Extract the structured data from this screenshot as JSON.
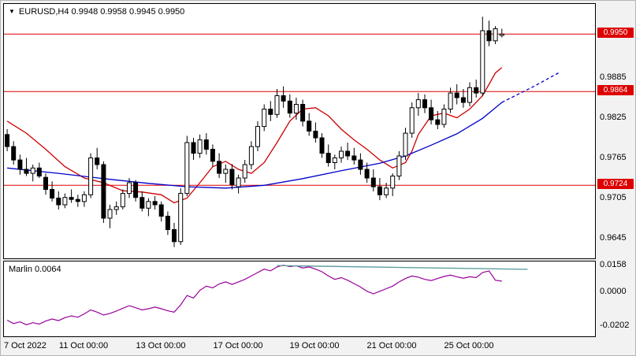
{
  "header": {
    "quote_line": "EURUSD,H4  0.9948 0.9958 0.9945 0.9950",
    "symbol": "EURUSD",
    "timeframe": "H4",
    "open": "0.9948",
    "high": "0.9958",
    "low": "0.9945",
    "close": "0.9950"
  },
  "indicator": {
    "label": "Marlin 0.0064",
    "name": "Marlin",
    "value": "0.0064"
  },
  "colors": {
    "up_candle": "#ffffff",
    "down_candle": "#000000",
    "level_line": "#dd0000",
    "badge_bg": "#dd0000",
    "ma_fast": "#cc0000",
    "ma_slow": "#0000cc",
    "indicator_line": "#990099",
    "trend_line": "#5f9ea0",
    "panel_bg": "#ffffff",
    "window_bg": "#f2f2f2"
  },
  "chart_data": [
    {
      "type": "candlestick",
      "symbol": "EURUSD",
      "timeframe": "H4",
      "ylim": [
        0.9615,
        0.9995
      ],
      "y_ticks": [
        0.9885,
        0.9825,
        0.9765,
        0.9705,
        0.9645
      ],
      "hlines": [
        0.995,
        0.9864,
        0.9724
      ],
      "total_slots": 92,
      "x_labels": [
        {
          "bar": 0,
          "label": "7 Oct 2022"
        },
        {
          "bar": 12,
          "label": "11 Oct 00:00"
        },
        {
          "bar": 24,
          "label": "13 Oct 00:00"
        },
        {
          "bar": 36,
          "label": "17 Oct 00:00"
        },
        {
          "bar": 48,
          "label": "19 Oct 00:00"
        },
        {
          "bar": 60,
          "label": "21 Oct 00:00"
        },
        {
          "bar": 72,
          "label": "25 Oct 00:00"
        }
      ],
      "candles": [
        [
          0.98,
          0.9808,
          0.9775,
          0.9782
        ],
        [
          0.9782,
          0.979,
          0.9755,
          0.9762
        ],
        [
          0.9762,
          0.977,
          0.974,
          0.9748
        ],
        [
          0.9748,
          0.9765,
          0.9738,
          0.9742
        ],
        [
          0.9742,
          0.9755,
          0.973,
          0.975
        ],
        [
          0.975,
          0.9758,
          0.9735,
          0.9738
        ],
        [
          0.9736,
          0.9742,
          0.971,
          0.9718
        ],
        [
          0.9718,
          0.973,
          0.97,
          0.9705
        ],
        [
          0.9705,
          0.9715,
          0.9688,
          0.9695
        ],
        [
          0.9695,
          0.9712,
          0.969,
          0.9706
        ],
        [
          0.9706,
          0.9718,
          0.9698,
          0.9703
        ],
        [
          0.9703,
          0.971,
          0.9692,
          0.97
        ],
        [
          0.97,
          0.9715,
          0.9692,
          0.971
        ],
        [
          0.971,
          0.9772,
          0.9705,
          0.9765
        ],
        [
          0.9765,
          0.978,
          0.9748,
          0.9755
        ],
        [
          0.9755,
          0.976,
          0.9668,
          0.9675
        ],
        [
          0.9675,
          0.9695,
          0.966,
          0.9688
        ],
        [
          0.9688,
          0.97,
          0.968,
          0.9692
        ],
        [
          0.9692,
          0.9718,
          0.9688,
          0.9712
        ],
        [
          0.9712,
          0.9735,
          0.9705,
          0.9728
        ],
        [
          0.9728,
          0.9732,
          0.97,
          0.9706
        ],
        [
          0.9706,
          0.9715,
          0.9685,
          0.969
        ],
        [
          0.969,
          0.9705,
          0.9678,
          0.97
        ],
        [
          0.97,
          0.9708,
          0.9688,
          0.9695
        ],
        [
          0.9695,
          0.97,
          0.967,
          0.9678
        ],
        [
          0.9678,
          0.9685,
          0.965,
          0.9658
        ],
        [
          0.9658,
          0.9668,
          0.9632,
          0.964
        ],
        [
          0.964,
          0.972,
          0.9635,
          0.9712
        ],
        [
          0.9712,
          0.9798,
          0.9708,
          0.9788
        ],
        [
          0.9788,
          0.9795,
          0.9762,
          0.9772
        ],
        [
          0.9772,
          0.98,
          0.9765,
          0.9792
        ],
        [
          0.9792,
          0.9802,
          0.977,
          0.9778
        ],
        [
          0.9778,
          0.9785,
          0.9752,
          0.976
        ],
        [
          0.976,
          0.9772,
          0.9735,
          0.9742
        ],
        [
          0.9742,
          0.9755,
          0.9728,
          0.9748
        ],
        [
          0.9748,
          0.9756,
          0.9718,
          0.9725
        ],
        [
          0.9722,
          0.974,
          0.9712,
          0.9735
        ],
        [
          0.9735,
          0.9762,
          0.9728,
          0.9755
        ],
        [
          0.9755,
          0.979,
          0.9748,
          0.9782
        ],
        [
          0.9782,
          0.982,
          0.9775,
          0.9812
        ],
        [
          0.9812,
          0.9845,
          0.9805,
          0.9838
        ],
        [
          0.9838,
          0.985,
          0.982,
          0.983
        ],
        [
          0.983,
          0.9868,
          0.9825,
          0.9858
        ],
        [
          0.9858,
          0.9872,
          0.984,
          0.985
        ],
        [
          0.985,
          0.986,
          0.9825,
          0.9832
        ],
        [
          0.9832,
          0.9855,
          0.9822,
          0.9845
        ],
        [
          0.9845,
          0.9852,
          0.9812,
          0.982
        ],
        [
          0.982,
          0.9832,
          0.9798,
          0.9805
        ],
        [
          0.9805,
          0.9818,
          0.9788,
          0.9795
        ],
        [
          0.9795,
          0.9802,
          0.9765,
          0.9772
        ],
        [
          0.9772,
          0.9785,
          0.9752,
          0.9758
        ],
        [
          0.9758,
          0.977,
          0.9748,
          0.9765
        ],
        [
          0.9765,
          0.9782,
          0.9758,
          0.9775
        ],
        [
          0.9775,
          0.9788,
          0.9762,
          0.9768
        ],
        [
          0.9768,
          0.978,
          0.9755,
          0.9762
        ],
        [
          0.9762,
          0.9772,
          0.974,
          0.9748
        ],
        [
          0.9748,
          0.9758,
          0.9728,
          0.9735
        ],
        [
          0.9735,
          0.9748,
          0.9715,
          0.9722
        ],
        [
          0.9722,
          0.9735,
          0.9702,
          0.971
        ],
        [
          0.971,
          0.9728,
          0.9705,
          0.972
        ],
        [
          0.972,
          0.9742,
          0.9708,
          0.9738
        ],
        [
          0.9738,
          0.9775,
          0.9732,
          0.9768
        ],
        [
          0.9768,
          0.981,
          0.9762,
          0.9802
        ],
        [
          0.9802,
          0.9848,
          0.9795,
          0.984
        ],
        [
          0.984,
          0.9862,
          0.9828,
          0.9852
        ],
        [
          0.9852,
          0.986,
          0.9832,
          0.984
        ],
        [
          0.984,
          0.9852,
          0.9815,
          0.9822
        ],
        [
          0.9822,
          0.9835,
          0.9808,
          0.9815
        ],
        [
          0.9815,
          0.9845,
          0.981,
          0.9838
        ],
        [
          0.9838,
          0.987,
          0.9832,
          0.9862
        ],
        [
          0.9862,
          0.9875,
          0.9845,
          0.9855
        ],
        [
          0.9855,
          0.9868,
          0.984,
          0.9848
        ],
        [
          0.9848,
          0.9878,
          0.9842,
          0.987
        ],
        [
          0.987,
          0.9882,
          0.9855,
          0.9862
        ],
        [
          0.9862,
          0.9976,
          0.9858,
          0.9955
        ],
        [
          0.9955,
          0.997,
          0.9932,
          0.994
        ],
        [
          0.994,
          0.9962,
          0.9935,
          0.9958
        ],
        [
          0.9948,
          0.9958,
          0.9945,
          0.995
        ]
      ],
      "ma_fast": [
        [
          0,
          0.982
        ],
        [
          3,
          0.9802
        ],
        [
          6,
          0.9778
        ],
        [
          9,
          0.9752
        ],
        [
          12,
          0.9735
        ],
        [
          15,
          0.9728
        ],
        [
          18,
          0.9716
        ],
        [
          21,
          0.9714
        ],
        [
          24,
          0.971
        ],
        [
          26,
          0.9698
        ],
        [
          28,
          0.9705
        ],
        [
          30,
          0.9728
        ],
        [
          32,
          0.9752
        ],
        [
          34,
          0.976
        ],
        [
          36,
          0.9748
        ],
        [
          38,
          0.9742
        ],
        [
          40,
          0.9758
        ],
        [
          42,
          0.9788
        ],
        [
          44,
          0.982
        ],
        [
          46,
          0.9838
        ],
        [
          48,
          0.984
        ],
        [
          50,
          0.9828
        ],
        [
          52,
          0.9808
        ],
        [
          54,
          0.9792
        ],
        [
          56,
          0.9778
        ],
        [
          58,
          0.9762
        ],
        [
          60,
          0.975
        ],
        [
          62,
          0.9758
        ],
        [
          63,
          0.9775
        ],
        [
          64,
          0.98
        ],
        [
          66,
          0.9828
        ],
        [
          68,
          0.9832
        ],
        [
          70,
          0.9825
        ],
        [
          72,
          0.9838
        ],
        [
          74,
          0.9858
        ],
        [
          75,
          0.9875
        ],
        [
          76,
          0.9892
        ],
        [
          77,
          0.99
        ]
      ],
      "ma_slow": [
        [
          0,
          0.975
        ],
        [
          8,
          0.9742
        ],
        [
          16,
          0.9733
        ],
        [
          22,
          0.9727
        ],
        [
          28,
          0.9722
        ],
        [
          34,
          0.972
        ],
        [
          40,
          0.9724
        ],
        [
          46,
          0.9734
        ],
        [
          52,
          0.9746
        ],
        [
          58,
          0.9757
        ],
        [
          62,
          0.9768
        ],
        [
          66,
          0.9784
        ],
        [
          70,
          0.9801
        ],
        [
          74,
          0.9824
        ],
        [
          77,
          0.9848
        ]
      ],
      "ma_slow_forecast": [
        [
          77,
          0.9848
        ],
        [
          82,
          0.9872
        ],
        [
          86,
          0.9893
        ]
      ]
    },
    {
      "type": "line",
      "name": "Marlin",
      "current_value": 0.0064,
      "ylim": [
        -0.026,
        0.018
      ],
      "y_ticks": [
        0.0158,
        0.0,
        -0.0202
      ],
      "values": [
        -0.0165,
        -0.0185,
        -0.0175,
        -0.0192,
        -0.018,
        -0.0188,
        -0.017,
        -0.0158,
        -0.0168,
        -0.015,
        -0.014,
        -0.0148,
        -0.0128,
        -0.0105,
        -0.0118,
        -0.0135,
        -0.0125,
        -0.0112,
        -0.0095,
        -0.008,
        -0.0092,
        -0.0105,
        -0.0098,
        -0.0088,
        -0.0098,
        -0.011,
        -0.0118,
        -0.0075,
        -0.002,
        -0.0035,
        0.001,
        0.0035,
        0.0025,
        0.0048,
        0.006,
        0.0045,
        0.006,
        0.0075,
        0.0095,
        0.0115,
        0.0135,
        0.0125,
        0.0148,
        0.0158,
        0.015,
        0.0155,
        0.0142,
        0.0148,
        0.0135,
        0.012,
        0.0095,
        0.0075,
        0.0085,
        0.007,
        0.005,
        0.003,
        0.0005,
        -0.001,
        0.0005,
        0.002,
        0.0035,
        0.006,
        0.008,
        0.0095,
        0.0088,
        0.0075,
        0.0068,
        0.008,
        0.0092,
        0.01,
        0.009,
        0.0082,
        0.009,
        0.0085,
        0.0115,
        0.0125,
        0.007,
        0.0064
      ],
      "trendline": {
        "from": [
          42,
          0.0156
        ],
        "to": [
          81,
          0.0134
        ]
      }
    }
  ]
}
